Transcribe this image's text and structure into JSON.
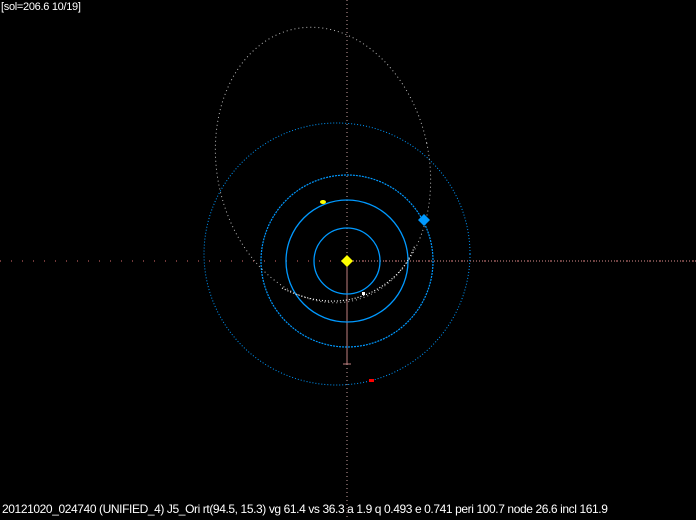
{
  "status": "[sol=206.6 10/19]",
  "info": "20121020_024740 (UNIFIED_4) J5_Ori rt(94.5, 15.3) vg 61.4 vs 36.3 a 1.9 q 0.493 e 0.741 peri 100.7 node 26.6 incl 161.9",
  "colors": {
    "sun": "#ffff00",
    "planet_orbit": "#0099ff",
    "earth": "#0099ff",
    "meteoroid_orbit": "#bbbbbb",
    "meteoroid_arc": "#ffffff",
    "axis_horizontal": "#e07070",
    "axis_vertical": "#c08080",
    "mars": "#ff0000",
    "venus": "#ffff00"
  }
}
